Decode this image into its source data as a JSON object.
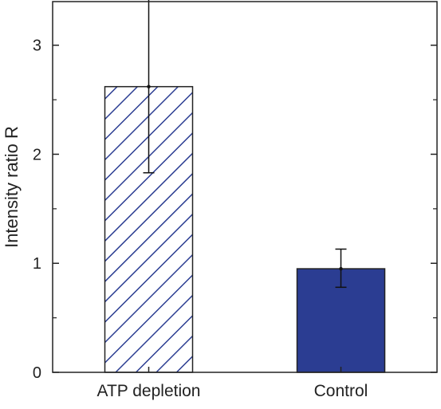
{
  "chart_data": {
    "type": "bar",
    "title": "",
    "xlabel": "",
    "ylabel": "Intensity ratio R",
    "categories": [
      "ATP depletion",
      "Control"
    ],
    "values": [
      2.62,
      0.95
    ],
    "error_upper": [
      3.42,
      1.13
    ],
    "error_lower": [
      1.83,
      0.78
    ],
    "ylim": [
      0,
      3.4
    ],
    "yticks": [
      0,
      1,
      2,
      3
    ],
    "ytick_labels": [
      "0",
      "1",
      "2",
      "3"
    ],
    "grid": false,
    "legend": "none",
    "bar_styles": [
      "hatched",
      "solid"
    ],
    "colors": {
      "bar": "#2b3d92",
      "axis": "#222222",
      "hatch_background": "#ffffff"
    }
  }
}
